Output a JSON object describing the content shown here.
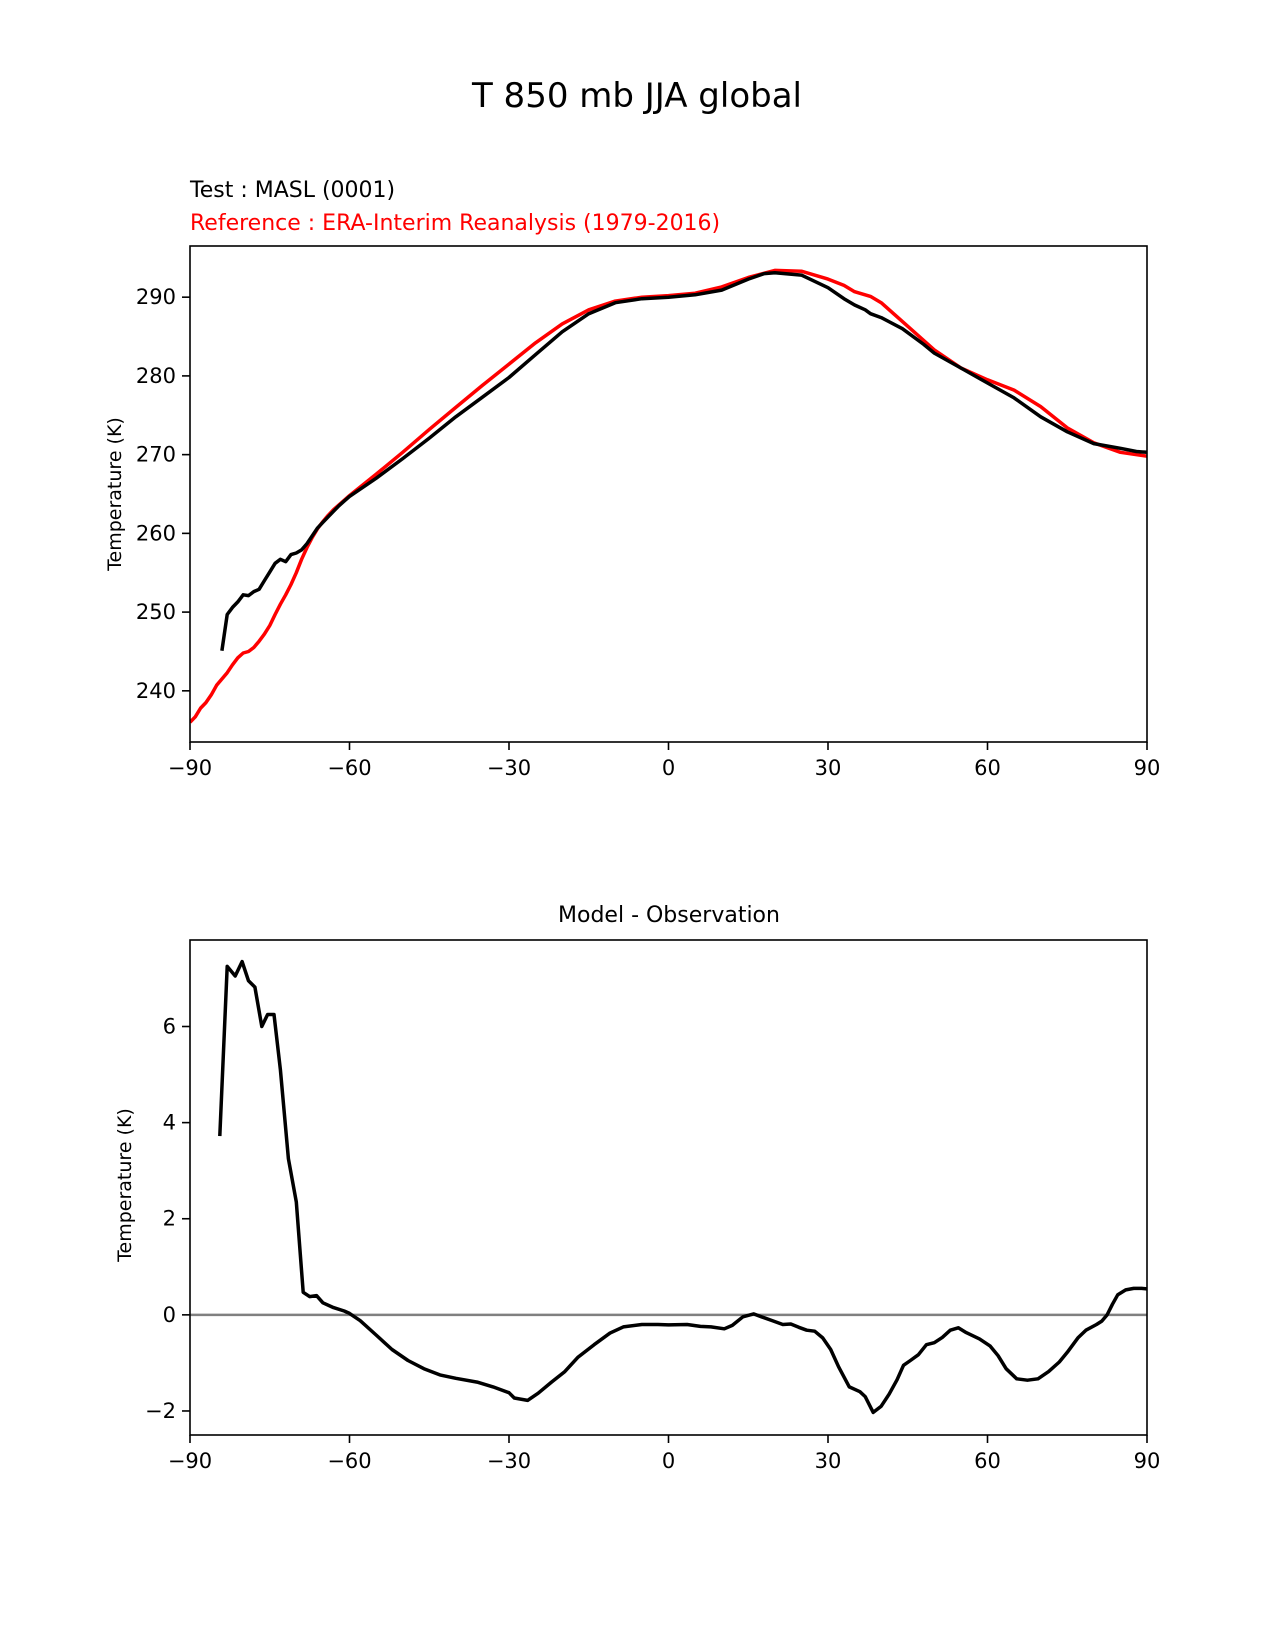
{
  "figure": {
    "title": "T 850 mb JJA global"
  },
  "chart_data": [
    {
      "type": "line",
      "title_test": "Test : MASL (0001)",
      "title_reference": "Reference : ERA-Interim Reanalysis (1979-2016)",
      "xlabel": "",
      "ylabel": "Temperature (K)",
      "xlim": [
        -90,
        90
      ],
      "ylim": [
        233.5,
        296.5
      ],
      "xticks": [
        -90,
        -60,
        -30,
        0,
        30,
        60,
        90
      ],
      "xtick_labels": [
        "−90",
        "−60",
        "−30",
        "0",
        "30",
        "60",
        "90"
      ],
      "yticks": [
        240,
        250,
        260,
        270,
        280,
        290
      ],
      "yticks_labels": [
        "240",
        "250",
        "260",
        "270",
        "280",
        "290"
      ],
      "grid": false,
      "series": [
        {
          "color": "#ff0000",
          "points": [
            [
              -90,
              236.0
            ],
            [
              -89,
              236.7
            ],
            [
              -88,
              237.8
            ],
            [
              -87,
              238.5
            ],
            [
              -86,
              239.5
            ],
            [
              -85,
              240.7
            ],
            [
              -84,
              241.5
            ],
            [
              -83,
              242.3
            ],
            [
              -82,
              243.3
            ],
            [
              -81,
              244.2
            ],
            [
              -80,
              244.8
            ],
            [
              -79,
              245.0
            ],
            [
              -78,
              245.5
            ],
            [
              -77,
              246.3
            ],
            [
              -76,
              247.2
            ],
            [
              -75,
              248.3
            ],
            [
              -74,
              249.7
            ],
            [
              -73,
              251.0
            ],
            [
              -72,
              252.2
            ],
            [
              -71,
              253.5
            ],
            [
              -70,
              255.0
            ],
            [
              -69,
              256.7
            ],
            [
              -68,
              258.2
            ],
            [
              -67,
              259.5
            ],
            [
              -66,
              260.6
            ],
            [
              -65,
              261.5
            ],
            [
              -64,
              262.3
            ],
            [
              -63,
              263.0
            ],
            [
              -62,
              263.6
            ],
            [
              -61,
              264.2
            ],
            [
              -60,
              264.8
            ],
            [
              -55,
              267.5
            ],
            [
              -50,
              270.3
            ],
            [
              -45,
              273.2
            ],
            [
              -40,
              276.0
            ],
            [
              -35,
              278.8
            ],
            [
              -30,
              281.5
            ],
            [
              -25,
              284.2
            ],
            [
              -20,
              286.6
            ],
            [
              -15,
              288.4
            ],
            [
              -10,
              289.5
            ],
            [
              -5,
              290.0
            ],
            [
              0,
              290.2
            ],
            [
              5,
              290.5
            ],
            [
              10,
              291.3
            ],
            [
              15,
              292.5
            ],
            [
              20,
              293.4
            ],
            [
              25,
              293.3
            ],
            [
              30,
              292.3
            ],
            [
              33,
              291.5
            ],
            [
              35,
              290.7
            ],
            [
              38,
              290.1
            ],
            [
              40,
              289.3
            ],
            [
              45,
              286.3
            ],
            [
              50,
              283.3
            ],
            [
              55,
              281.0
            ],
            [
              60,
              279.5
            ],
            [
              65,
              278.2
            ],
            [
              70,
              276.1
            ],
            [
              75,
              273.4
            ],
            [
              80,
              271.5
            ],
            [
              85,
              270.3
            ],
            [
              90,
              269.8
            ]
          ]
        },
        {
          "color": "#000000",
          "points": [
            [
              -84,
              245.1
            ],
            [
              -83,
              249.7
            ],
            [
              -82,
              250.6
            ],
            [
              -81,
              251.3
            ],
            [
              -80,
              252.2
            ],
            [
              -79,
              252.1
            ],
            [
              -78,
              252.6
            ],
            [
              -77,
              252.9
            ],
            [
              -76,
              254.0
            ],
            [
              -75,
              255.1
            ],
            [
              -74,
              256.2
            ],
            [
              -73,
              256.7
            ],
            [
              -72,
              256.4
            ],
            [
              -71,
              257.3
            ],
            [
              -70,
              257.5
            ],
            [
              -69,
              257.9
            ],
            [
              -68,
              258.7
            ],
            [
              -67,
              259.7
            ],
            [
              -66,
              260.7
            ],
            [
              -65,
              261.4
            ],
            [
              -64,
              262.1
            ],
            [
              -63,
              262.8
            ],
            [
              -62,
              263.5
            ],
            [
              -61,
              264.1
            ],
            [
              -60,
              264.7
            ],
            [
              -55,
              267.0
            ],
            [
              -50,
              269.5
            ],
            [
              -45,
              272.1
            ],
            [
              -40,
              274.8
            ],
            [
              -35,
              277.3
            ],
            [
              -30,
              279.8
            ],
            [
              -25,
              282.7
            ],
            [
              -20,
              285.6
            ],
            [
              -15,
              287.9
            ],
            [
              -10,
              289.3
            ],
            [
              -5,
              289.8
            ],
            [
              0,
              290.0
            ],
            [
              5,
              290.3
            ],
            [
              10,
              290.9
            ],
            [
              15,
              292.3
            ],
            [
              18,
              293.0
            ],
            [
              20,
              293.1
            ],
            [
              25,
              292.8
            ],
            [
              30,
              291.2
            ],
            [
              33,
              289.8
            ],
            [
              35,
              289.0
            ],
            [
              37,
              288.4
            ],
            [
              38,
              287.9
            ],
            [
              40,
              287.4
            ],
            [
              44,
              286.0
            ],
            [
              48,
              284.0
            ],
            [
              50,
              282.9
            ],
            [
              55,
              281.0
            ],
            [
              60,
              279.1
            ],
            [
              65,
              277.2
            ],
            [
              70,
              274.8
            ],
            [
              75,
              272.9
            ],
            [
              80,
              271.4
            ],
            [
              85,
              270.8
            ],
            [
              88,
              270.4
            ],
            [
              90,
              270.3
            ]
          ]
        }
      ]
    },
    {
      "type": "line",
      "title": "Model - Observation",
      "xlabel": "",
      "ylabel": "Temperature (K)",
      "xlim": [
        -90,
        90
      ],
      "ylim": [
        -2.5,
        7.8
      ],
      "xticks": [
        -90,
        -60,
        -30,
        0,
        30,
        60,
        90
      ],
      "xtick_labels": [
        "−90",
        "−60",
        "−30",
        "0",
        "30",
        "60",
        "90"
      ],
      "yticks": [
        -2,
        0,
        2,
        4,
        6
      ],
      "yticks_labels": [
        "−2",
        "0",
        "2",
        "4",
        "6"
      ],
      "grid": false,
      "reference_line": {
        "y": 0,
        "color": "#808080"
      },
      "series": [
        {
          "color": "#000000",
          "points": [
            [
              -84.4,
              3.72
            ],
            [
              -83,
              7.25
            ],
            [
              -81.5,
              7.05
            ],
            [
              -80.2,
              7.35
            ],
            [
              -79,
              6.95
            ],
            [
              -77.8,
              6.82
            ],
            [
              -76.5,
              6.0
            ],
            [
              -75.4,
              6.25
            ],
            [
              -74.2,
              6.25
            ],
            [
              -73,
              5.1
            ],
            [
              -71.5,
              3.25
            ],
            [
              -70,
              2.35
            ],
            [
              -68.7,
              0.47
            ],
            [
              -67.5,
              0.38
            ],
            [
              -66.2,
              0.4
            ],
            [
              -65,
              0.25
            ],
            [
              -63,
              0.15
            ],
            [
              -61,
              0.08
            ],
            [
              -60,
              0.03
            ],
            [
              -58,
              -0.12
            ],
            [
              -55,
              -0.42
            ],
            [
              -52,
              -0.72
            ],
            [
              -49,
              -0.95
            ],
            [
              -46,
              -1.12
            ],
            [
              -43,
              -1.25
            ],
            [
              -40,
              -1.32
            ],
            [
              -36,
              -1.4
            ],
            [
              -33,
              -1.5
            ],
            [
              -30,
              -1.62
            ],
            [
              -29,
              -1.73
            ],
            [
              -26.5,
              -1.78
            ],
            [
              -24.5,
              -1.63
            ],
            [
              -22,
              -1.4
            ],
            [
              -19.5,
              -1.18
            ],
            [
              -17,
              -0.88
            ],
            [
              -14,
              -0.62
            ],
            [
              -11,
              -0.38
            ],
            [
              -8.5,
              -0.25
            ],
            [
              -5,
              -0.2
            ],
            [
              -2,
              -0.2
            ],
            [
              0,
              -0.21
            ],
            [
              3.5,
              -0.2
            ],
            [
              6,
              -0.24
            ],
            [
              8,
              -0.25
            ],
            [
              10.5,
              -0.29
            ],
            [
              12,
              -0.22
            ],
            [
              14,
              -0.04
            ],
            [
              16,
              0.02
            ],
            [
              17.5,
              -0.04
            ],
            [
              19.5,
              -0.12
            ],
            [
              21.5,
              -0.2
            ],
            [
              23,
              -0.19
            ],
            [
              24.5,
              -0.26
            ],
            [
              26,
              -0.32
            ],
            [
              27.5,
              -0.34
            ],
            [
              29,
              -0.48
            ],
            [
              30.5,
              -0.72
            ],
            [
              32,
              -1.08
            ],
            [
              34,
              -1.5
            ],
            [
              36,
              -1.6
            ],
            [
              37,
              -1.7
            ],
            [
              38.5,
              -2.03
            ],
            [
              40,
              -1.9
            ],
            [
              41.5,
              -1.65
            ],
            [
              43,
              -1.35
            ],
            [
              44.2,
              -1.05
            ],
            [
              45.5,
              -0.95
            ],
            [
              47,
              -0.83
            ],
            [
              48.5,
              -0.62
            ],
            [
              50,
              -0.58
            ],
            [
              51.5,
              -0.47
            ],
            [
              53,
              -0.32
            ],
            [
              54.5,
              -0.27
            ],
            [
              56,
              -0.37
            ],
            [
              58.5,
              -0.5
            ],
            [
              60.5,
              -0.65
            ],
            [
              62,
              -0.85
            ],
            [
              63.5,
              -1.12
            ],
            [
              65.5,
              -1.33
            ],
            [
              67.5,
              -1.36
            ],
            [
              69.5,
              -1.33
            ],
            [
              71.5,
              -1.18
            ],
            [
              73.5,
              -0.98
            ],
            [
              75,
              -0.78
            ],
            [
              77,
              -0.48
            ],
            [
              78.5,
              -0.32
            ],
            [
              80.5,
              -0.2
            ],
            [
              81.5,
              -0.13
            ],
            [
              82.5,
              0.0
            ],
            [
              83.5,
              0.22
            ],
            [
              84.5,
              0.42
            ],
            [
              86,
              0.52
            ],
            [
              87.5,
              0.55
            ],
            [
              89,
              0.55
            ],
            [
              90,
              0.54
            ]
          ]
        }
      ]
    }
  ]
}
